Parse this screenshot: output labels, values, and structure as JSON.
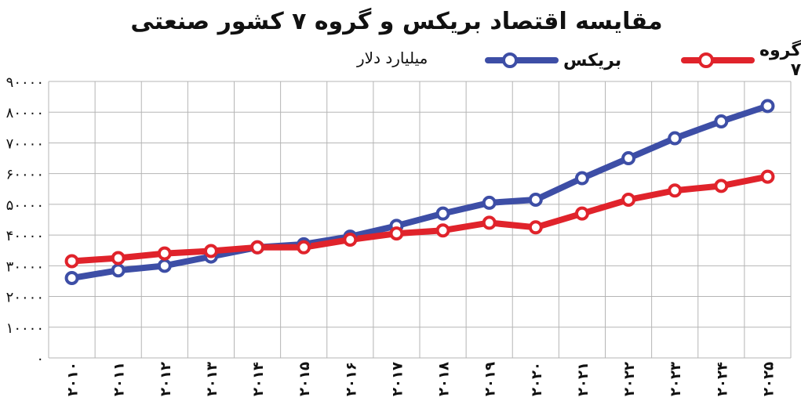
{
  "chart_data": {
    "type": "line",
    "title": "مقایسه اقتصاد بریکس و گروه ۷ کشور صنعتی",
    "unit": "میلیارد دلار",
    "categories": [
      "۲۰۱۰",
      "۲۰۱۱",
      "۲۰۱۲",
      "۲۰۱۳",
      "۲۰۱۴",
      "۲۰۱۵",
      "۲۰۱۶",
      "۲۰۱۷",
      "۲۰۱۸",
      "۲۰۱۹",
      "۲۰۲۰",
      "۲۰۲۱",
      "۲۰۲۲",
      "۲۰۲۳",
      "۲۰۲۴",
      "۲۰۲۵"
    ],
    "yticks": [
      "۰",
      "۱۰۰۰۰",
      "۲۰۰۰۰",
      "۳۰۰۰۰",
      "۴۰۰۰۰",
      "۵۰۰۰۰",
      "۶۰۰۰۰",
      "۷۰۰۰۰",
      "۸۰۰۰۰",
      "۹۰۰۰۰"
    ],
    "ylim": [
      0,
      90000
    ],
    "grid": true,
    "legend_position": "top-right",
    "series": [
      {
        "name": "بریکس",
        "color": "#3d4ea6",
        "values": [
          26000,
          28500,
          30000,
          33000,
          36000,
          37000,
          39500,
          43000,
          47000,
          50500,
          51500,
          58500,
          65000,
          71500,
          77000,
          82000
        ]
      },
      {
        "name": "گروه ۷",
        "color": "#e0232b",
        "values": [
          31500,
          32500,
          34000,
          34800,
          36000,
          36000,
          38500,
          40500,
          41500,
          44000,
          42500,
          47000,
          51500,
          54500,
          56000,
          59000
        ]
      }
    ]
  }
}
